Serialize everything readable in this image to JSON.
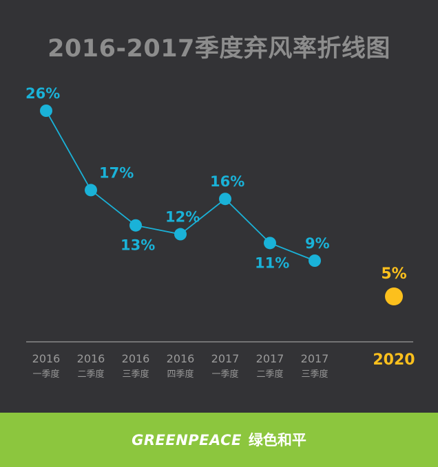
{
  "title": "2016-2017季度弃风率折线图",
  "colors": {
    "background": "#333336",
    "title": "#8d8d8d",
    "series": "#1ab2d8",
    "target": "#fcc01d",
    "axis": "#8a8a8a",
    "tick": "#9a9a9a",
    "footer": "#8cc63e"
  },
  "chart_data": {
    "type": "line",
    "title": "2016-2017季度弃风率折线图",
    "xlabel": "",
    "ylabel": "",
    "ylim": [
      0,
      30
    ],
    "categories": [
      {
        "year": "2016",
        "quarter": "一季度"
      },
      {
        "year": "2016",
        "quarter": "二季度"
      },
      {
        "year": "2016",
        "quarter": "三季度"
      },
      {
        "year": "2016",
        "quarter": "四季度"
      },
      {
        "year": "2017",
        "quarter": "一季度"
      },
      {
        "year": "2017",
        "quarter": "二季度"
      },
      {
        "year": "2017",
        "quarter": "三季度"
      },
      {
        "year": "2020",
        "quarter": ""
      }
    ],
    "series": [
      {
        "values": [
          26,
          17,
          13,
          12,
          16,
          11,
          9,
          null
        ],
        "labels": [
          "26%",
          "17%",
          "13%",
          "12%",
          "16%",
          "11%",
          "9%",
          ""
        ]
      },
      {
        "values": [
          null,
          null,
          null,
          null,
          null,
          null,
          null,
          5
        ],
        "labels": [
          "",
          "",
          "",
          "",
          "",
          "",
          "",
          "5%"
        ]
      }
    ],
    "grid": false,
    "legend": "none"
  },
  "footer": {
    "brand_latin": "GREENPEACE",
    "brand_cn": "绿色和平"
  }
}
